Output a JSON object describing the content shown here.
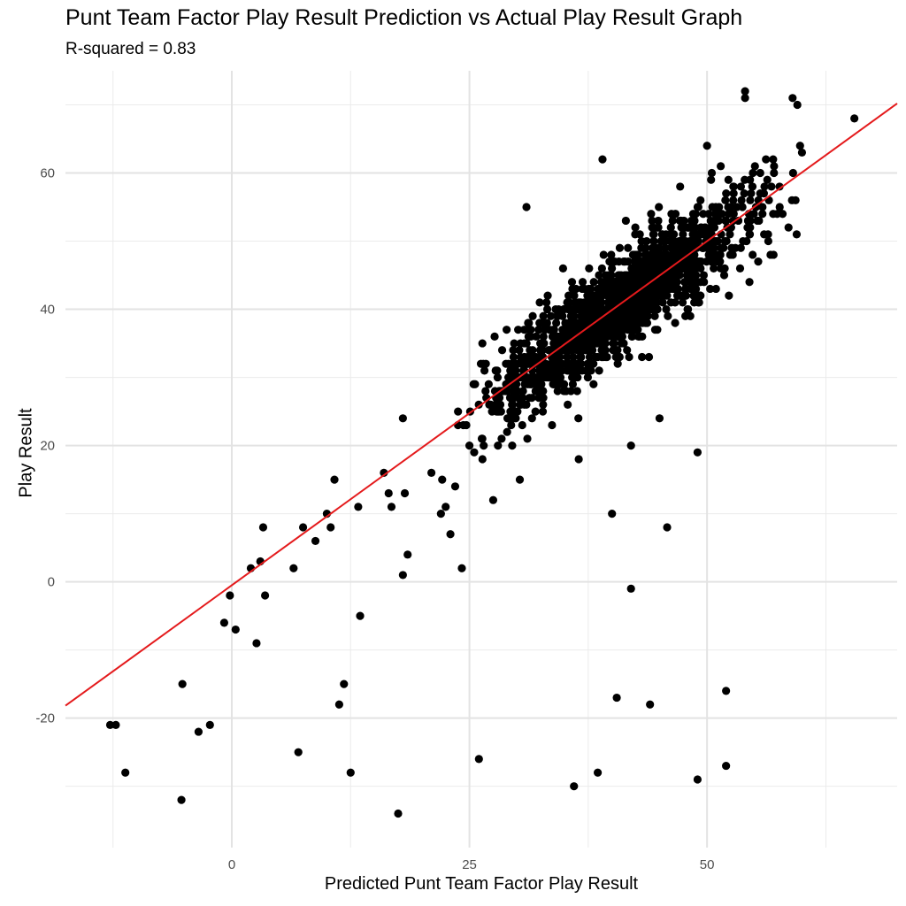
{
  "chart_data": {
    "type": "scatter",
    "title": "Punt Team Factor Play Result Prediction vs Actual Play Result Graph",
    "subtitle": "R-squared = 0.83",
    "xlabel": "Predicted Punt Team Factor Play Result",
    "ylabel": "Play Result",
    "xlim": [
      -17.5,
      70
    ],
    "ylim": [
      -39,
      75
    ],
    "xticks": [
      0,
      25,
      50
    ],
    "yticks": [
      -20,
      0,
      20,
      40,
      60
    ],
    "grid": true,
    "legend": "none",
    "point_color": "#000000",
    "fit_line": {
      "label": "fit",
      "slope": 1.01,
      "intercept": -0.5,
      "color": "#e41a1c"
    },
    "outlier_points": [
      [
        -12.8,
        -21
      ],
      [
        -12.2,
        -21
      ],
      [
        -11.2,
        -28
      ],
      [
        -5.3,
        -32
      ],
      [
        -5.2,
        -15
      ],
      [
        -3.5,
        -22
      ],
      [
        -2.3,
        -21
      ],
      [
        -0.8,
        -6
      ],
      [
        -0.2,
        -2
      ],
      [
        0.4,
        -7
      ],
      [
        2,
        2
      ],
      [
        2.6,
        -9
      ],
      [
        3,
        3
      ],
      [
        3.3,
        8
      ],
      [
        3.5,
        -2
      ],
      [
        6.5,
        2
      ],
      [
        7,
        -25
      ],
      [
        7.5,
        8
      ],
      [
        8.8,
        6
      ],
      [
        10,
        10
      ],
      [
        10.4,
        8
      ],
      [
        10.8,
        15
      ],
      [
        11.3,
        -18
      ],
      [
        11.8,
        -15
      ],
      [
        12.5,
        -28
      ],
      [
        13.3,
        11
      ],
      [
        13.5,
        -5
      ],
      [
        16,
        16
      ],
      [
        16.5,
        13
      ],
      [
        16.8,
        11
      ],
      [
        17.5,
        -34
      ],
      [
        18,
        24
      ],
      [
        18,
        1
      ],
      [
        18.2,
        13
      ],
      [
        18.5,
        4
      ],
      [
        21,
        16
      ],
      [
        22,
        10
      ],
      [
        22.5,
        11
      ],
      [
        23,
        7
      ],
      [
        23.5,
        14
      ],
      [
        24.2,
        2
      ],
      [
        25,
        20
      ],
      [
        25.5,
        19
      ],
      [
        26,
        -26
      ],
      [
        27.5,
        12
      ],
      [
        28,
        20
      ],
      [
        29.5,
        20
      ],
      [
        30.3,
        15
      ],
      [
        31,
        55
      ],
      [
        36,
        -30
      ],
      [
        36.5,
        18
      ],
      [
        38.5,
        -28
      ],
      [
        39,
        62
      ],
      [
        40,
        10
      ],
      [
        40.5,
        -17
      ],
      [
        42,
        -1
      ],
      [
        42,
        20
      ],
      [
        44,
        -18
      ],
      [
        45,
        24
      ],
      [
        45.8,
        8
      ],
      [
        48,
        40
      ],
      [
        49,
        19
      ],
      [
        49,
        -29
      ],
      [
        50,
        64
      ],
      [
        52,
        -16
      ],
      [
        52,
        -27
      ],
      [
        52.3,
        42
      ],
      [
        54,
        72
      ],
      [
        54,
        71
      ],
      [
        59,
        71
      ],
      [
        59.5,
        70
      ],
      [
        65.5,
        68
      ]
    ]
  }
}
